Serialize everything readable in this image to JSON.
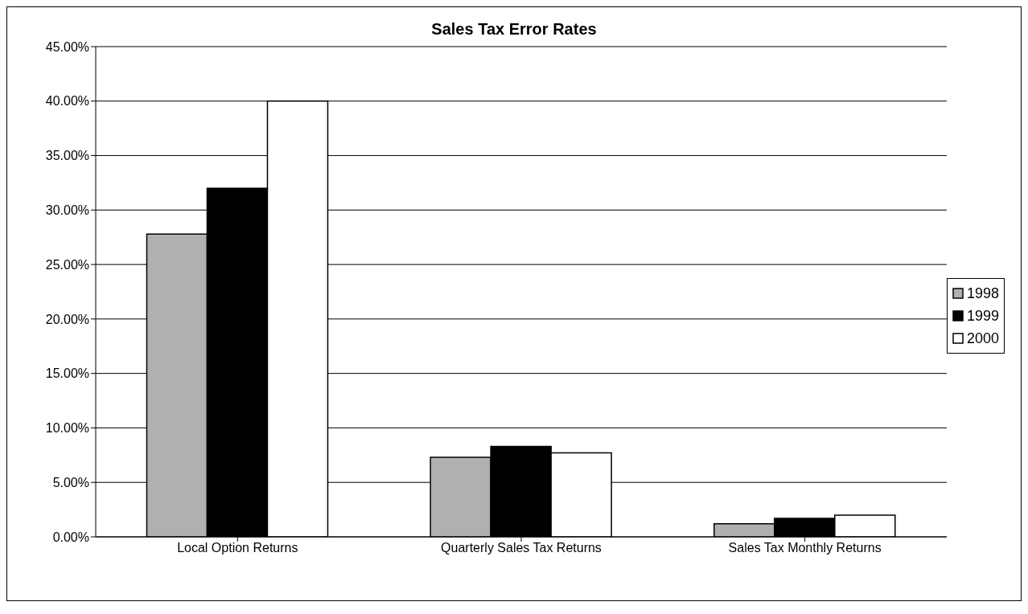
{
  "chart_data": {
    "type": "bar",
    "title": "Sales Tax Error Rates",
    "categories": [
      "Local Option Returns",
      "Quarterly Sales Tax Returns",
      "Sales Tax Monthly Returns"
    ],
    "series": [
      {
        "name": "1998",
        "color": "#b0b0b0",
        "values": [
          27.8,
          7.3,
          1.2
        ]
      },
      {
        "name": "1999",
        "color": "#000000",
        "values": [
          32,
          8.3,
          1.7
        ]
      },
      {
        "name": "2000",
        "color": "#ffffff",
        "values": [
          40,
          7.7,
          2.0
        ]
      }
    ],
    "ylim": [
      0,
      45
    ],
    "yticks": [
      {
        "value": 0,
        "label": "0.00%"
      },
      {
        "value": 5,
        "label": "5.00%"
      },
      {
        "value": 10,
        "label": "10.00%"
      },
      {
        "value": 15,
        "label": "15.00%"
      },
      {
        "value": 20,
        "label": "20.00%"
      },
      {
        "value": 25,
        "label": "25.00%"
      },
      {
        "value": 30,
        "label": "30.00%"
      },
      {
        "value": 35,
        "label": "35.00%"
      },
      {
        "value": 40,
        "label": "40.00%"
      },
      {
        "value": 45,
        "label": "45.00%"
      }
    ],
    "grid": "y",
    "legend": "right"
  }
}
